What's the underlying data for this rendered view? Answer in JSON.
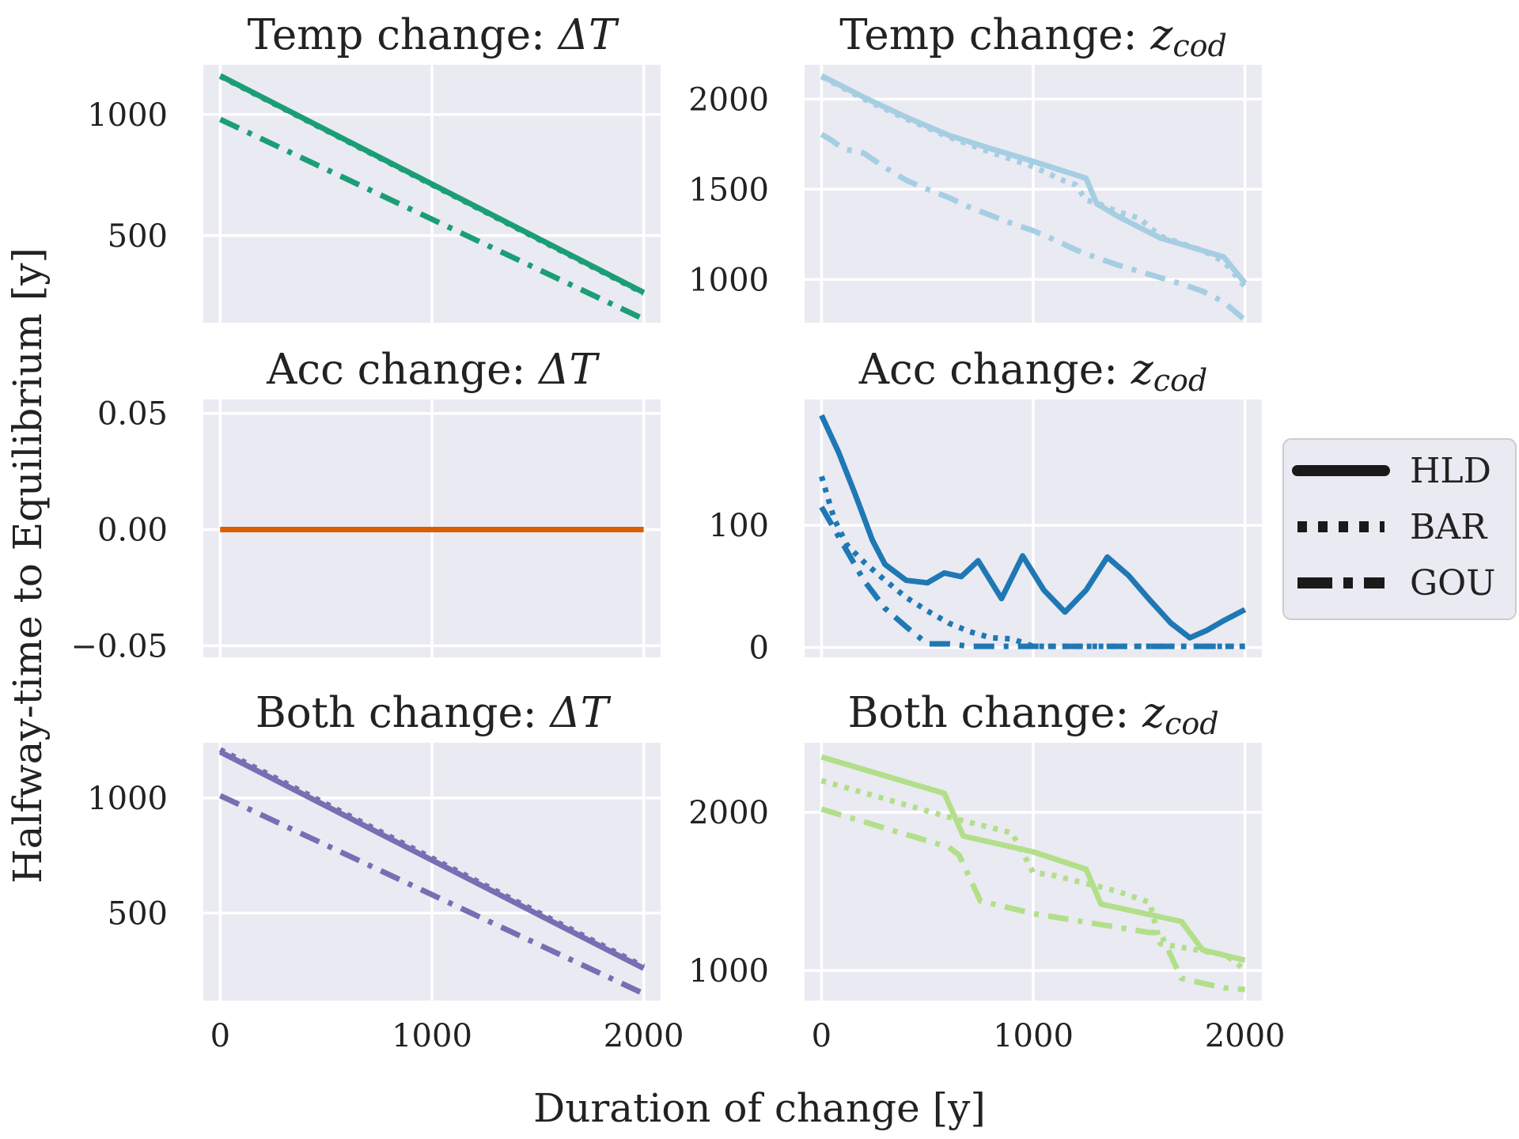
{
  "xlabel": "Duration of change [y]",
  "ylabel": "Halfway-time to Equilibrium [y]",
  "legend": {
    "placement": "center-right",
    "entries": [
      {
        "label": "HLD",
        "style": "solid"
      },
      {
        "label": "BAR",
        "style": "dotted"
      },
      {
        "label": "GOU",
        "style": "dashdot"
      }
    ]
  },
  "chart_data": [
    {
      "type": "line",
      "title_prefix": "Temp change: ",
      "title_symbol": "ΔT",
      "title_sub": "",
      "color": "#1b9e77",
      "xlim": [
        -80,
        2080
      ],
      "ylim": [
        140,
        1205
      ],
      "xticks": [
        0,
        1000,
        2000
      ],
      "yticks": [
        500,
        1000
      ],
      "ytick_labels": [
        "500",
        "1000"
      ],
      "show_xtick_labels": false,
      "series": [
        {
          "name": "HLD",
          "x": [
            0,
            2000
          ],
          "y": [
            1160,
            265
          ]
        },
        {
          "name": "BAR",
          "x": [
            0,
            2000
          ],
          "y": [
            1158,
            262
          ]
        },
        {
          "name": "GOU",
          "x": [
            0,
            2000
          ],
          "y": [
            980,
            155
          ]
        }
      ]
    },
    {
      "type": "line",
      "title_prefix": "Temp change: ",
      "title_symbol": "z",
      "title_sub": "cod",
      "color": "#a6cee3",
      "xlim": [
        -80,
        2080
      ],
      "ylim": [
        760,
        2190
      ],
      "xticks": [
        0,
        1000,
        2000
      ],
      "yticks": [
        1000,
        1500,
        2000
      ],
      "ytick_labels": [
        "1000",
        "1500",
        "2000"
      ],
      "show_xtick_labels": false,
      "series": [
        {
          "name": "HLD",
          "x": [
            0,
            200,
            400,
            600,
            800,
            1000,
            1200,
            1250,
            1300,
            1400,
            1600,
            1700,
            1800,
            1900,
            2000
          ],
          "y": [
            2130,
            2010,
            1900,
            1800,
            1725,
            1655,
            1580,
            1560,
            1420,
            1350,
            1230,
            1195,
            1160,
            1125,
            980
          ]
        },
        {
          "name": "BAR",
          "x": [
            0,
            200,
            400,
            600,
            800,
            1000,
            1150,
            1200,
            1250,
            1300,
            1400,
            1500,
            1600,
            1800,
            1900,
            2000
          ],
          "y": [
            2125,
            2000,
            1890,
            1790,
            1705,
            1625,
            1545,
            1525,
            1440,
            1425,
            1375,
            1340,
            1240,
            1160,
            1100,
            960
          ]
        },
        {
          "name": "GOU",
          "x": [
            0,
            50,
            100,
            200,
            300,
            400,
            500,
            600,
            700,
            800,
            900,
            1000,
            1100,
            1200,
            1300,
            1400,
            1500,
            1600,
            1700,
            1800,
            1900,
            2000
          ],
          "y": [
            1805,
            1770,
            1725,
            1700,
            1620,
            1550,
            1500,
            1455,
            1400,
            1355,
            1310,
            1270,
            1220,
            1165,
            1120,
            1080,
            1045,
            1010,
            975,
            935,
            875,
            775
          ]
        }
      ]
    },
    {
      "type": "line",
      "title_prefix": "Acc change: ",
      "title_symbol": "ΔT",
      "title_sub": "",
      "color": "#d95f02",
      "xlim": [
        -80,
        2080
      ],
      "ylim": [
        -0.055,
        0.056
      ],
      "xticks": [
        0,
        1000,
        2000
      ],
      "yticks": [
        -0.05,
        0,
        0.05
      ],
      "ytick_labels": [
        "−0.05",
        "0.00",
        "0.05"
      ],
      "show_xtick_labels": false,
      "series": [
        {
          "name": "HLD",
          "x": [
            0,
            2000
          ],
          "y": [
            0,
            0
          ]
        },
        {
          "name": "BAR",
          "x": [
            0,
            2000
          ],
          "y": [
            0,
            0
          ]
        },
        {
          "name": "GOU",
          "x": [
            0,
            2000
          ],
          "y": [
            0,
            0
          ]
        }
      ]
    },
    {
      "type": "line",
      "title_prefix": "Acc change: ",
      "title_symbol": "z",
      "title_sub": "cod",
      "color": "#1f78b4",
      "xlim": [
        -80,
        2080
      ],
      "ylim": [
        -8,
        203
      ],
      "xticks": [
        0,
        1000,
        2000
      ],
      "yticks": [
        0,
        100
      ],
      "ytick_labels": [
        "0",
        "100"
      ],
      "show_xtick_labels": false,
      "series": [
        {
          "name": "HLD",
          "x": [
            0,
            80,
            160,
            240,
            300,
            400,
            500,
            580,
            660,
            740,
            850,
            950,
            1050,
            1150,
            1250,
            1350,
            1450,
            1550,
            1650,
            1740,
            1820,
            1900,
            2000
          ],
          "y": [
            190,
            160,
            125,
            88,
            68,
            55,
            53,
            61,
            58,
            71,
            40,
            75,
            47,
            29,
            47,
            74,
            59,
            39,
            20,
            8,
            14,
            22,
            31
          ]
        },
        {
          "name": "BAR",
          "x": [
            0,
            60,
            120,
            200,
            300,
            400,
            500,
            600,
            700,
            800,
            900,
            1000,
            1100,
            1200,
            1400,
            1600,
            1800,
            2000
          ],
          "y": [
            140,
            105,
            84,
            70,
            55,
            41,
            30,
            20,
            13,
            8,
            7,
            1,
            1,
            1,
            1,
            1,
            1,
            1
          ]
        },
        {
          "name": "GOU",
          "x": [
            0,
            50,
            100,
            150,
            200,
            300,
            400,
            500,
            600,
            700,
            800,
            1000,
            1200,
            1400,
            1600,
            1800,
            2000
          ],
          "y": [
            115,
            100,
            85,
            70,
            55,
            32,
            17,
            3,
            3,
            1,
            1,
            1,
            1,
            1,
            1,
            1,
            1
          ]
        }
      ]
    },
    {
      "type": "line",
      "title_prefix": "Both change: ",
      "title_symbol": "ΔT",
      "title_sub": "",
      "color": "#7570b3",
      "xlim": [
        -80,
        2080
      ],
      "ylim": [
        120,
        1240
      ],
      "xticks": [
        0,
        1000,
        2000
      ],
      "yticks": [
        500,
        1000
      ],
      "ytick_labels": [
        "500",
        "1000"
      ],
      "show_xtick_labels": true,
      "series": [
        {
          "name": "HLD",
          "x": [
            0,
            2000
          ],
          "y": [
            1200,
            260
          ]
        },
        {
          "name": "BAR",
          "x": [
            0,
            2000
          ],
          "y": [
            1210,
            268
          ]
        },
        {
          "name": "GOU",
          "x": [
            0,
            2000
          ],
          "y": [
            1010,
            150
          ]
        }
      ]
    },
    {
      "type": "line",
      "title_prefix": "Both change: ",
      "title_symbol": "z",
      "title_sub": "cod",
      "color": "#b2df8a",
      "xlim": [
        -80,
        2080
      ],
      "ylim": [
        810,
        2440
      ],
      "xticks": [
        0,
        1000,
        2000
      ],
      "yticks": [
        1000,
        2000
      ],
      "ytick_labels": [
        "1000",
        "2000"
      ],
      "show_xtick_labels": true,
      "series": [
        {
          "name": "HLD",
          "x": [
            0,
            580,
            670,
            1000,
            1250,
            1320,
            1700,
            1800,
            2000
          ],
          "y": [
            2350,
            2120,
            1850,
            1750,
            1640,
            1420,
            1310,
            1130,
            1065
          ]
        },
        {
          "name": "BAR",
          "x": [
            0,
            600,
            900,
            1000,
            1100,
            1400,
            1550,
            1600,
            1900,
            1950,
            2000
          ],
          "y": [
            2200,
            1970,
            1870,
            1620,
            1600,
            1500,
            1430,
            1170,
            1100,
            1060,
            1000
          ]
        },
        {
          "name": "GOU",
          "x": [
            0,
            600,
            650,
            750,
            1000,
            1550,
            1600,
            1700,
            1900,
            2000
          ],
          "y": [
            2020,
            1780,
            1730,
            1440,
            1360,
            1240,
            1240,
            950,
            890,
            880
          ]
        }
      ]
    }
  ]
}
